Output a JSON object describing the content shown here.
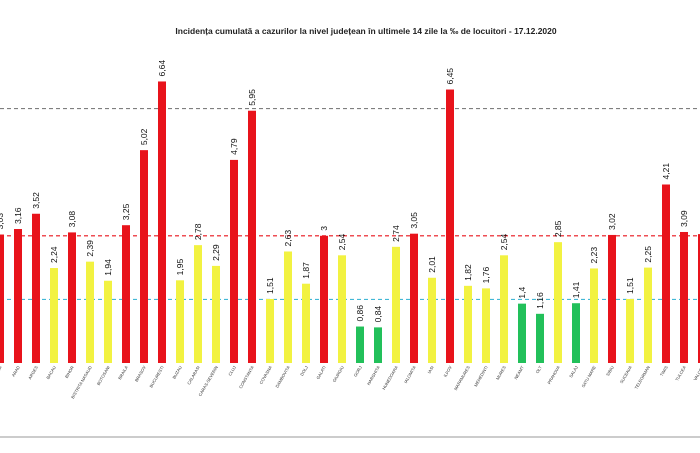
{
  "chart_data": {
    "type": "bar",
    "title": "Incidența cumulată a cazurilor la nivel județean în ultimele 14 zile la ‰ de locuitori - 17.12.2020",
    "xlabel": "",
    "ylabel": "",
    "ylim": [
      0,
      7.5
    ],
    "grid": false,
    "legend": "none",
    "colors": {
      "red": "#e8131b",
      "yellow": "#f2f241",
      "green": "#22c05a",
      "threshold_red": "#e8131b",
      "threshold_cyan": "#43b8d6",
      "threshold_gray": "#7f7f7f"
    },
    "thresholds": [
      {
        "value": 1.5,
        "color": "#43b8d6"
      },
      {
        "value": 3,
        "color": "#e8131b"
      },
      {
        "value": 6,
        "color": "#7f7f7f"
      }
    ],
    "categories": [
      "ALBA",
      "ARAD",
      "ARGES",
      "BACAU",
      "BIHOR",
      "BISTRITA NASAUD",
      "BOTOSANI",
      "BRAILA",
      "BRASOV",
      "BUCURESTI",
      "BUZAU",
      "CALARASI",
      "CARAS-SEVERIN",
      "CLUJ",
      "CONSTANTA",
      "COVASNA",
      "DAMBOVITA",
      "DOLJ",
      "GALATI",
      "GIURGIU",
      "GORJ",
      "HARGHITA",
      "HUNEDOARA",
      "IALOMITA",
      "IASI",
      "ILFOV",
      "MARAMURES",
      "MEHEDINTI",
      "MURES",
      "NEAMT",
      "OLT",
      "PRAHOVA",
      "SALAJ",
      "SATU MARE",
      "SIBIU",
      "SUCEAVA",
      "TELEORMAN",
      "TIMIS",
      "TULCEA",
      "VALCEA"
    ],
    "values": [
      3.03,
      3.16,
      3.52,
      2.24,
      3.08,
      2.39,
      1.94,
      3.25,
      5.02,
      6.64,
      1.95,
      2.78,
      2.29,
      4.79,
      5.95,
      1.51,
      2.63,
      1.87,
      3,
      2.54,
      0.86,
      0.84,
      2.74,
      3.05,
      2.01,
      6.45,
      1.82,
      1.76,
      2.54,
      1.4,
      1.16,
      2.85,
      1.41,
      2.23,
      3.02,
      1.51,
      2.25,
      4.21,
      3.09,
      3.04
    ],
    "value_labels": [
      "3,03",
      "3,16",
      "3,52",
      "2,24",
      "3,08",
      "2,39",
      "1,94",
      "3,25",
      "5,02",
      "6,64",
      "1,95",
      "2,78",
      "2,29",
      "4,79",
      "5,95",
      "1,51",
      "2,63",
      "1,87",
      "3",
      "2,54",
      "0,86",
      "0,84",
      "2,74",
      "3,05",
      "2,01",
      "6,45",
      "1,82",
      "1,76",
      "2,54",
      "1,4",
      "1,16",
      "2,85",
      "1,41",
      "2,23",
      "3,02",
      "1,51",
      "2,25",
      "4,21",
      "3,09",
      ""
    ],
    "bar_colors": [
      "red",
      "red",
      "red",
      "yellow",
      "red",
      "yellow",
      "yellow",
      "red",
      "red",
      "red",
      "yellow",
      "yellow",
      "yellow",
      "red",
      "red",
      "yellow",
      "yellow",
      "yellow",
      "red",
      "yellow",
      "green",
      "green",
      "yellow",
      "red",
      "yellow",
      "red",
      "yellow",
      "yellow",
      "yellow",
      "green",
      "green",
      "yellow",
      "green",
      "yellow",
      "red",
      "yellow",
      "yellow",
      "red",
      "red",
      "red"
    ]
  }
}
